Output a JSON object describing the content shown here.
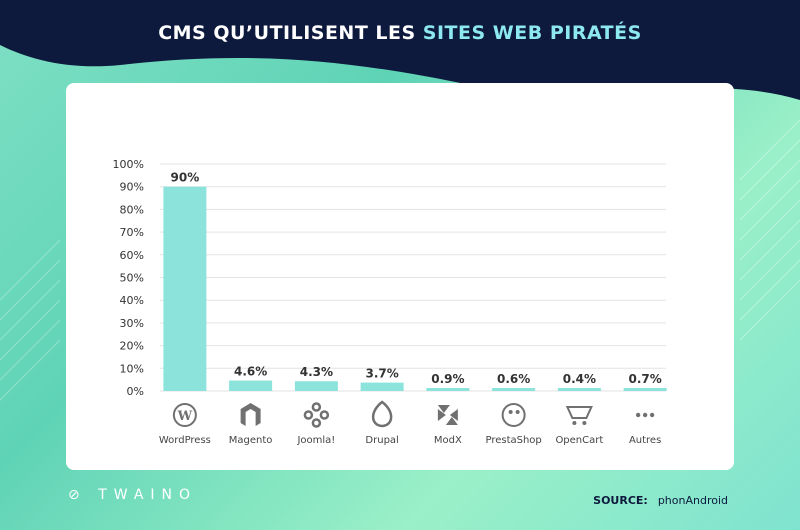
{
  "header": {
    "title_part1": "CMS QU’UTILISENT LES ",
    "title_part2": "SITES WEB PIRATÉS"
  },
  "footer": {
    "brand": "TWAINO",
    "source_label": "SOURCE:",
    "source_value": "phonAndroid"
  },
  "colors": {
    "bar": "#8be3dc",
    "header_bg": "#0d1a3d",
    "accent": "#8de8f0",
    "grid": "#e3e3e3",
    "icon": "#707070"
  },
  "chart_data": {
    "type": "bar",
    "categories": [
      "WordPress",
      "Magento",
      "Joomla!",
      "Drupal",
      "ModX",
      "PrestaShop",
      "OpenCart",
      "Autres"
    ],
    "values": [
      90,
      4.6,
      4.3,
      3.7,
      0.9,
      0.6,
      0.4,
      0.7
    ],
    "value_labels": [
      "90%",
      "4.6%",
      "4.3%",
      "3.7%",
      "0.9%",
      "0.6%",
      "0.4%",
      "0.7%"
    ],
    "icons": [
      "wordpress-icon",
      "magento-icon",
      "joomla-icon",
      "drupal-icon",
      "modx-icon",
      "prestashop-icon",
      "opencart-icon",
      "more-dots-icon"
    ],
    "yticks": [
      "0%",
      "10%",
      "20%",
      "30%",
      "40%",
      "50%",
      "60%",
      "70%",
      "80%",
      "90%",
      "100%"
    ],
    "ylim": [
      0,
      100
    ],
    "grid": true,
    "legend": false
  }
}
